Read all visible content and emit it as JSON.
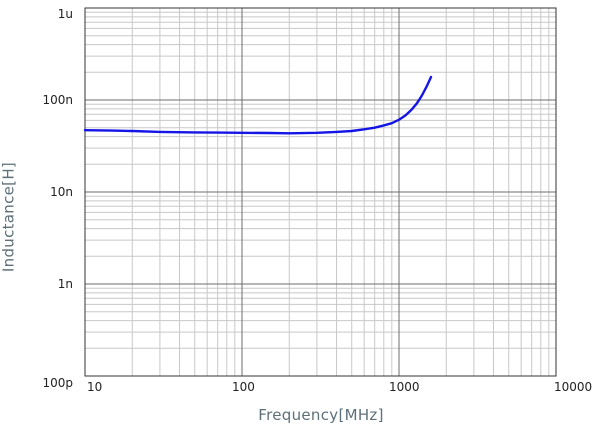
{
  "chart_data": {
    "type": "line",
    "xlabel": "Frequency[MHz]",
    "ylabel": "Inductance[H]",
    "x_scale": "log",
    "y_scale": "log",
    "xlim": [
      10,
      10000
    ],
    "ylim": [
      1e-10,
      1e-06
    ],
    "x_ticks": [
      {
        "value": 10,
        "label": "10"
      },
      {
        "value": 100,
        "label": "100"
      },
      {
        "value": 1000,
        "label": "1000"
      },
      {
        "value": 10000,
        "label": "10000"
      }
    ],
    "y_ticks": [
      {
        "value": 1e-10,
        "label": "100p"
      },
      {
        "value": 1e-09,
        "label": "1n"
      },
      {
        "value": 1e-08,
        "label": "10n"
      },
      {
        "value": 1e-07,
        "label": "100n"
      },
      {
        "value": 1e-06,
        "label": "1u"
      }
    ],
    "grid": true,
    "series": [
      {
        "color": "#1515e6",
        "x": [
          10,
          15,
          20,
          30,
          50,
          70,
          100,
          150,
          200,
          300,
          400,
          500,
          600,
          700,
          800,
          900,
          1000,
          1100,
          1200,
          1300,
          1400,
          1500,
          1600
        ],
        "y": [
          4.7e-08,
          4.65e-08,
          4.6e-08,
          4.5e-08,
          4.45e-08,
          4.42e-08,
          4.4e-08,
          4.38e-08,
          4.35e-08,
          4.4e-08,
          4.5e-08,
          4.6e-08,
          4.8e-08,
          5e-08,
          5.3e-08,
          5.6e-08,
          6.1e-08,
          6.8e-08,
          7.8e-08,
          9.2e-08,
          1.12e-07,
          1.4e-07,
          1.78e-07
        ]
      }
    ]
  }
}
